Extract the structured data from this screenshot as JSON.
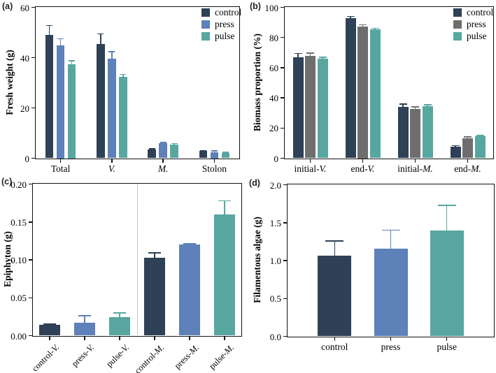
{
  "figure": {
    "background": "#ffffff"
  },
  "colors": {
    "control_navy": "#2e4156",
    "press_blue": "#5d81b8",
    "press_gray": "#6e6e6e",
    "pulse_teal": "#57a7a0",
    "axis": "#111111"
  },
  "chart_data": [
    {
      "id": "a",
      "type": "bar",
      "panel_label": "(a)",
      "ylabel": "Fresh weight (g)",
      "ylim": [
        0,
        60
      ],
      "yticks": [
        "0",
        "20",
        "40",
        "60"
      ],
      "grid": false,
      "legend_position": "top-right",
      "categories": [
        "Total",
        "V.",
        "M.",
        "Stolon"
      ],
      "series": [
        {
          "name": "control",
          "color": "#2e4156",
          "values": [
            49,
            45.5,
            3.5,
            2.8
          ],
          "errors": [
            3.8,
            4.0,
            0.3,
            0.3
          ]
        },
        {
          "name": "press",
          "color": "#5d81b8",
          "values": [
            45,
            39.5,
            5.9,
            2.5
          ],
          "errors": [
            2.5,
            2.8,
            0.4,
            0.4
          ]
        },
        {
          "name": "pulse",
          "color": "#57a7a0",
          "values": [
            37.5,
            32.3,
            5.5,
            2.0
          ],
          "errors": [
            1.2,
            1.0,
            0.3,
            0.3
          ]
        }
      ]
    },
    {
      "id": "b",
      "type": "bar",
      "panel_label": "(b)",
      "ylabel": "Biomass proportion (%)",
      "ylim": [
        0,
        100
      ],
      "yticks": [
        "0",
        "20",
        "40",
        "60",
        "80",
        "100"
      ],
      "grid": false,
      "legend_position": "top-right",
      "categories": [
        "initial-V.",
        "end-V.",
        "initial-M.",
        "end-M."
      ],
      "series": [
        {
          "name": "control",
          "color": "#2e4156",
          "values": [
            67,
            93,
            34,
            7.6
          ],
          "errors": [
            2.5,
            1.0,
            2.0,
            0.8
          ]
        },
        {
          "name": "press",
          "color": "#6e6e6e",
          "values": [
            68,
            87.5,
            32.5,
            13.2
          ],
          "errors": [
            1.8,
            1.0,
            1.5,
            1.0
          ]
        },
        {
          "name": "pulse",
          "color": "#57a7a0",
          "values": [
            66,
            85.5,
            34.5,
            14.6
          ],
          "errors": [
            1.0,
            0.6,
            0.8,
            0.5
          ]
        }
      ]
    },
    {
      "id": "c",
      "type": "bar",
      "panel_label": "(c)",
      "ylabel": "Epiphyton (g)",
      "ylim": [
        0,
        0.2
      ],
      "yticks": [
        "0.00",
        "0.05",
        "0.10",
        "0.15",
        "0.20"
      ],
      "grid": false,
      "separator": true,
      "categories": [
        "control-V.",
        "press-V.",
        "pulse-V.",
        "control-M.",
        "press-M.",
        "pulse-M."
      ],
      "series": [
        {
          "name": "epiphyton",
          "colors": [
            "#2e4156",
            "#5d81b8",
            "#57a7a0",
            "#2e4156",
            "#5d81b8",
            "#57a7a0"
          ],
          "values": [
            0.014,
            0.017,
            0.024,
            0.103,
            0.12,
            0.16
          ],
          "errors": [
            0.001,
            0.009,
            0.006,
            0.006,
            0.001,
            0.018
          ]
        }
      ]
    },
    {
      "id": "d",
      "type": "bar",
      "panel_label": "(d)",
      "ylabel": "Filamentous algae (g)",
      "ylim": [
        0,
        2.0
      ],
      "yticks": [
        "0.0",
        "0.5",
        "1.0",
        "1.5",
        "2.0"
      ],
      "grid": false,
      "categories": [
        "control",
        "press",
        "pulse"
      ],
      "series": [
        {
          "name": "filamentous algae",
          "colors": [
            "#2e4156",
            "#5d81b8",
            "#57a7a0"
          ],
          "values": [
            1.06,
            1.16,
            1.4
          ],
          "errors": [
            0.2,
            0.24,
            0.33
          ]
        }
      ]
    }
  ]
}
